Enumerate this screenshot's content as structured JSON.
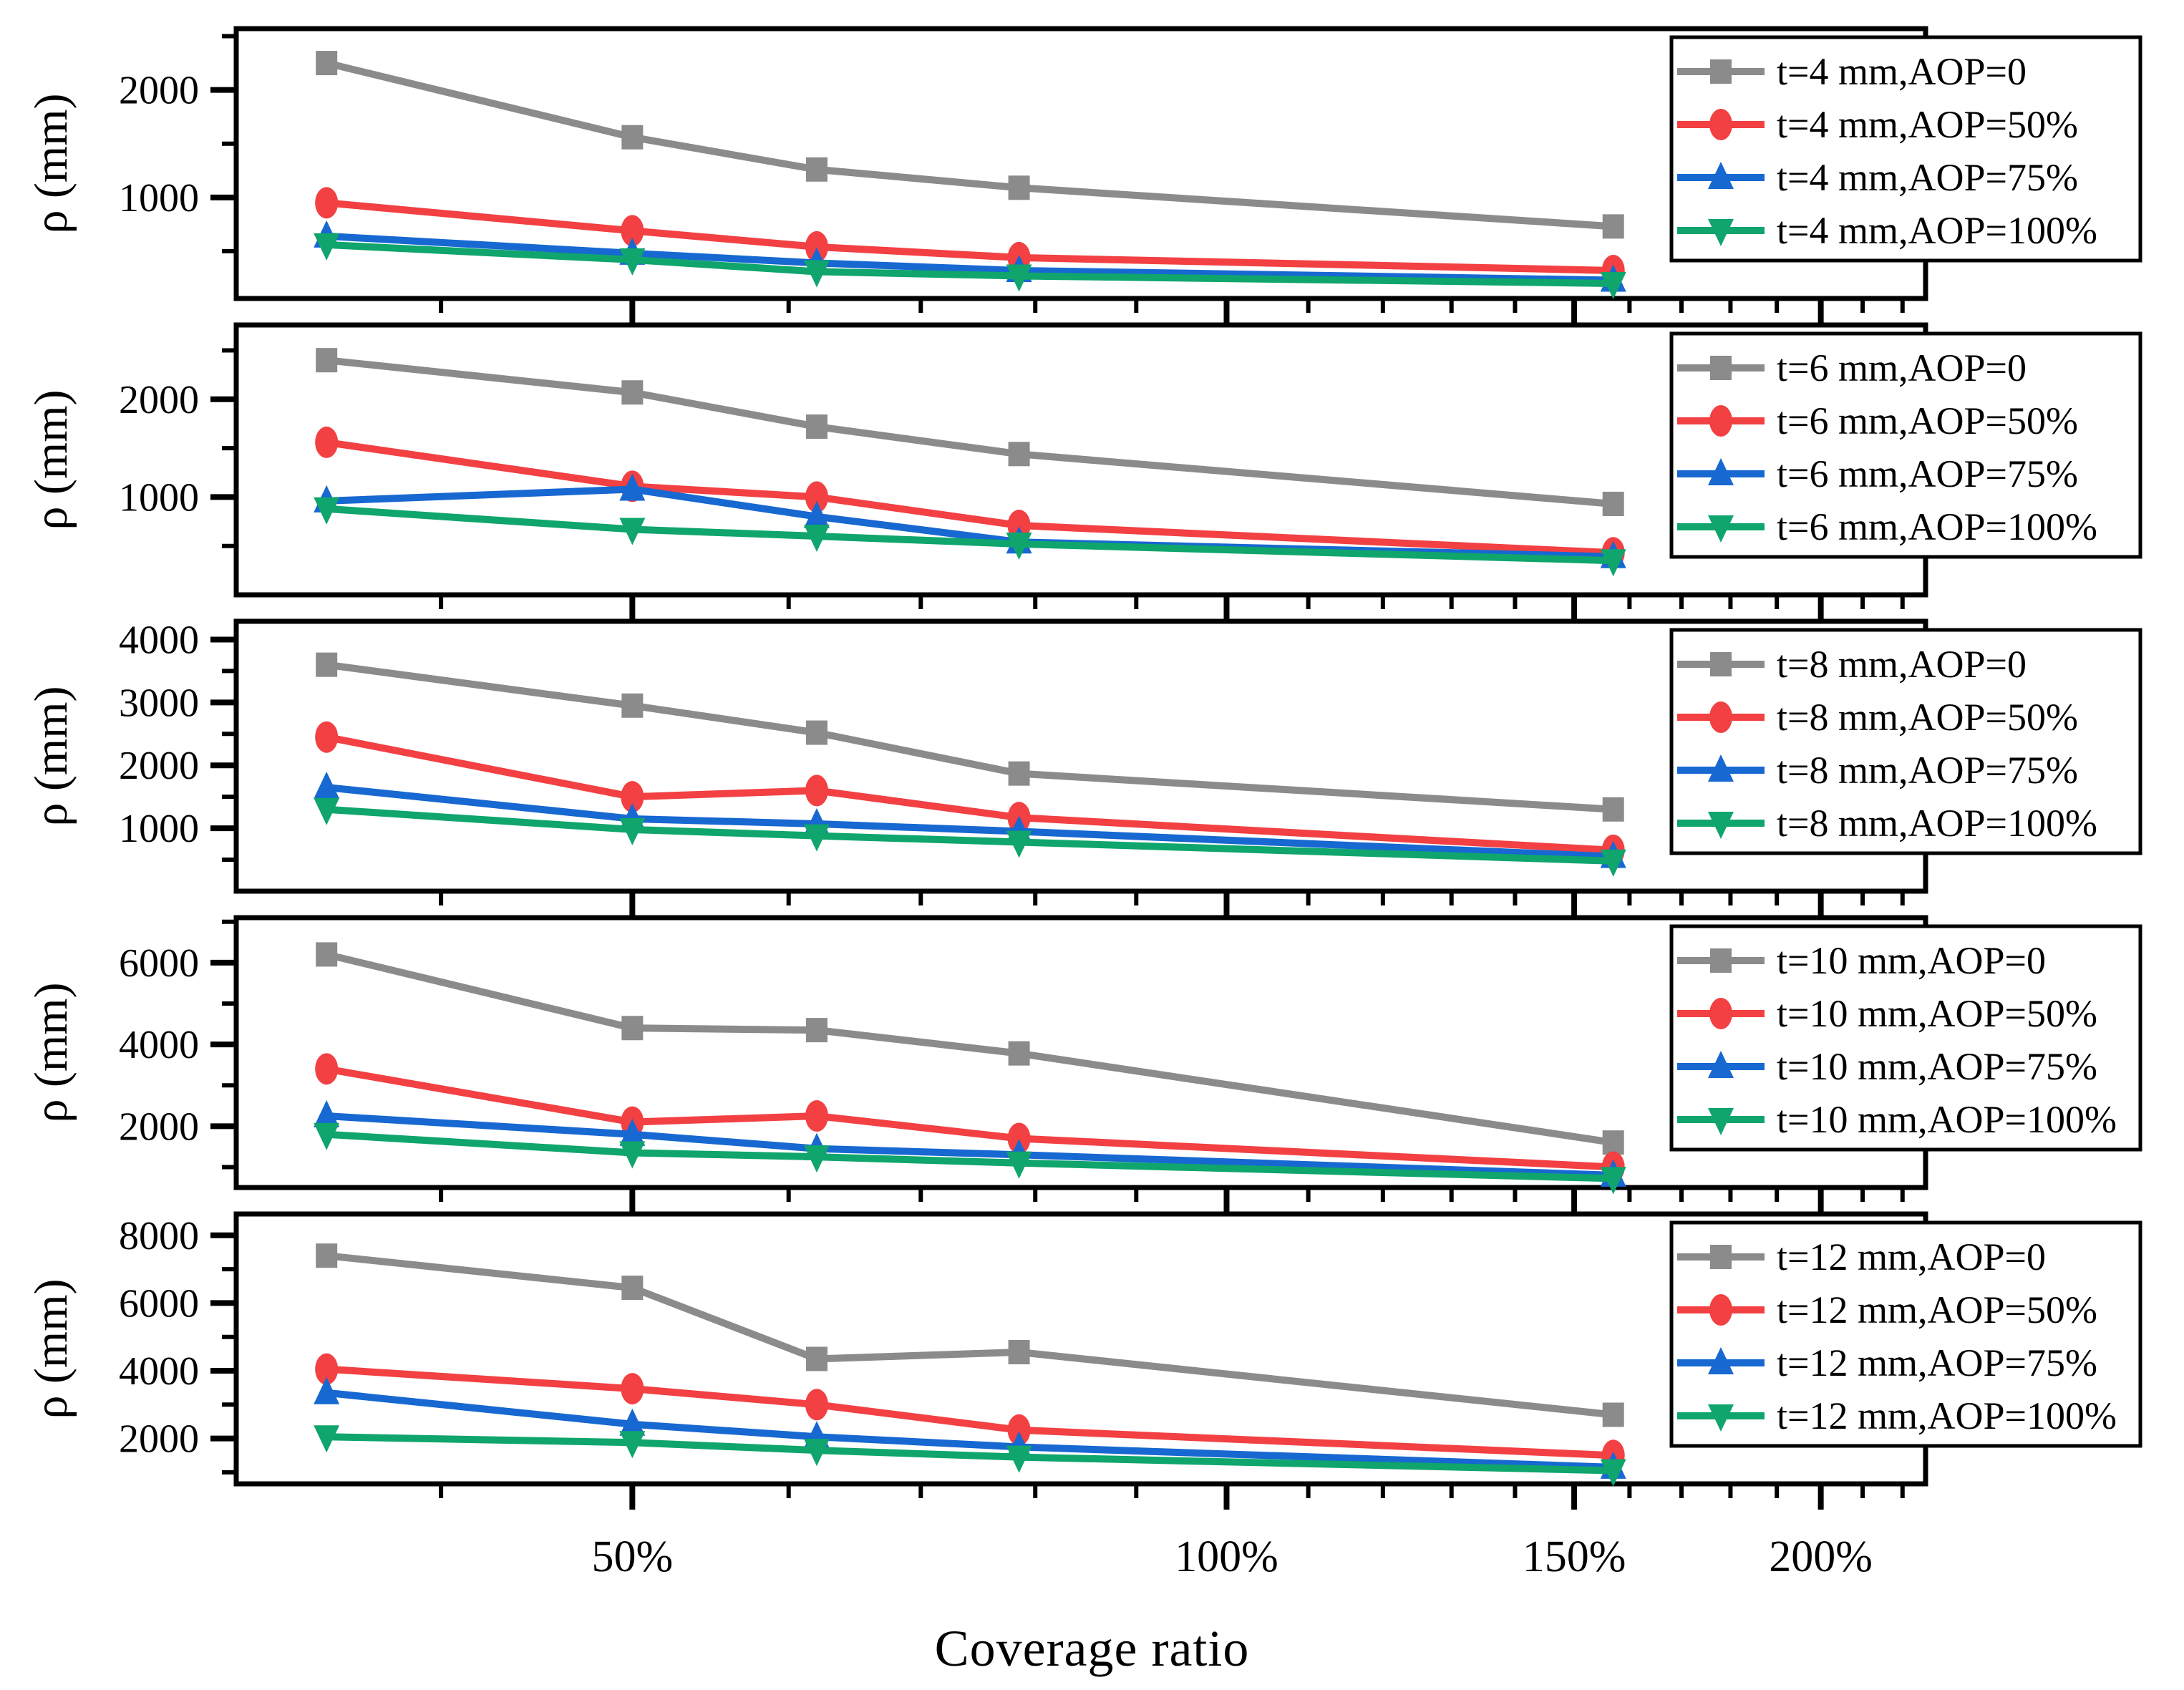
{
  "figure": {
    "xlabel": "Coverage ratio",
    "ylabel": "ρ (mm)",
    "background": "#ffffff",
    "axis_color": "#000000",
    "x_tick_labels": [
      "50%",
      "100%",
      "150%",
      "200%"
    ]
  },
  "chart_data": [
    {
      "type": "line",
      "panel": "t=4 mm",
      "ylabel": "ρ (mm)",
      "x_scale": "log",
      "xlim": [
        0.315,
        2.26
      ],
      "x": [
        0.35,
        0.5,
        0.62,
        0.785,
        1.57
      ],
      "x_major_ticks": [
        0.5,
        1.0,
        1.5,
        2.0
      ],
      "x_major_tick_labels": [
        "50%",
        "100%",
        "150%",
        "200%"
      ],
      "x_minor_ticks": [
        0.4,
        0.6,
        0.7,
        0.8,
        0.9,
        1.1,
        1.2,
        1.3,
        1.4,
        1.6,
        1.7,
        1.8,
        1.9,
        2.1,
        2.2
      ],
      "ylim": [
        60,
        2570
      ],
      "y_major_ticks": [
        1000,
        2000
      ],
      "y_minor_ticks": [
        500,
        1500,
        2500
      ],
      "legend_position": "right",
      "series": [
        {
          "name": "t=4 mm,AOP=0",
          "color": "#8B8B8B",
          "marker": "square",
          "values": [
            2250,
            1560,
            1260,
            1090,
            730
          ]
        },
        {
          "name": "t=4 mm,AOP=50%",
          "color": "#F24043",
          "marker": "circle",
          "values": [
            950,
            690,
            540,
            440,
            320
          ]
        },
        {
          "name": "t=4 mm,AOP=75%",
          "color": "#1768D1",
          "marker": "triangle-up",
          "values": [
            640,
            480,
            390,
            320,
            230
          ]
        },
        {
          "name": "t=4 mm,AOP=100%",
          "color": "#0FA56D",
          "marker": "triangle-down",
          "values": [
            560,
            420,
            310,
            270,
            200
          ]
        }
      ]
    },
    {
      "type": "line",
      "panel": "t=6 mm",
      "ylabel": "ρ (mm)",
      "x_scale": "log",
      "xlim": [
        0.315,
        2.26
      ],
      "x": [
        0.35,
        0.5,
        0.62,
        0.785,
        1.57
      ],
      "x_major_ticks": [
        0.5,
        1.0,
        1.5,
        2.0
      ],
      "x_major_tick_labels": [
        "50%",
        "100%",
        "150%",
        "200%"
      ],
      "x_minor_ticks": [
        0.4,
        0.6,
        0.7,
        0.8,
        0.9,
        1.1,
        1.2,
        1.3,
        1.4,
        1.6,
        1.7,
        1.8,
        1.9,
        2.1,
        2.2
      ],
      "ylim": [
        0,
        2760
      ],
      "y_major_ticks": [
        1000,
        2000
      ],
      "y_minor_ticks": [
        500,
        1500,
        2500
      ],
      "legend_position": "right",
      "series": [
        {
          "name": "t=6 mm,AOP=0",
          "color": "#8B8B8B",
          "marker": "square",
          "values": [
            2400,
            2070,
            1720,
            1440,
            930
          ]
        },
        {
          "name": "t=6 mm,AOP=50%",
          "color": "#F24043",
          "marker": "circle",
          "values": [
            1560,
            1110,
            1000,
            710,
            430
          ]
        },
        {
          "name": "t=6 mm,AOP=75%",
          "color": "#1768D1",
          "marker": "triangle-up",
          "values": [
            960,
            1080,
            800,
            540,
            390
          ]
        },
        {
          "name": "t=6 mm,AOP=100%",
          "color": "#0FA56D",
          "marker": "triangle-down",
          "values": [
            880,
            670,
            600,
            520,
            350
          ]
        }
      ]
    },
    {
      "type": "line",
      "panel": "t=8 mm",
      "ylabel": "ρ (mm)",
      "x_scale": "log",
      "xlim": [
        0.315,
        2.26
      ],
      "x": [
        0.35,
        0.5,
        0.62,
        0.785,
        1.57
      ],
      "x_major_ticks": [
        0.5,
        1.0,
        1.5,
        2.0
      ],
      "x_major_tick_labels": [
        "50%",
        "100%",
        "150%",
        "200%"
      ],
      "x_minor_ticks": [
        0.4,
        0.6,
        0.7,
        0.8,
        0.9,
        1.1,
        1.2,
        1.3,
        1.4,
        1.6,
        1.7,
        1.8,
        1.9,
        2.1,
        2.2
      ],
      "ylim": [
        0,
        4290
      ],
      "y_major_ticks": [
        1000,
        2000,
        3000,
        4000
      ],
      "y_minor_ticks": [
        500,
        1500,
        2500,
        3500
      ],
      "legend_position": "right",
      "series": [
        {
          "name": "t=8 mm,AOP=0",
          "color": "#8B8B8B",
          "marker": "square",
          "values": [
            3600,
            2950,
            2520,
            1870,
            1300
          ]
        },
        {
          "name": "t=8 mm,AOP=50%",
          "color": "#F24043",
          "marker": "circle",
          "values": [
            2450,
            1500,
            1600,
            1170,
            650
          ]
        },
        {
          "name": "t=8 mm,AOP=75%",
          "color": "#1768D1",
          "marker": "triangle-up",
          "values": [
            1650,
            1150,
            1070,
            950,
            550
          ]
        },
        {
          "name": "t=8 mm,AOP=100%",
          "color": "#0FA56D",
          "marker": "triangle-down",
          "values": [
            1300,
            980,
            880,
            780,
            480
          ]
        }
      ]
    },
    {
      "type": "line",
      "panel": "t=10 mm",
      "ylabel": "ρ (mm)",
      "x_scale": "log",
      "xlim": [
        0.315,
        2.26
      ],
      "x": [
        0.35,
        0.5,
        0.62,
        0.785,
        1.57
      ],
      "x_major_ticks": [
        0.5,
        1.0,
        1.5,
        2.0
      ],
      "x_major_tick_labels": [
        "50%",
        "100%",
        "150%",
        "200%"
      ],
      "x_minor_ticks": [
        0.4,
        0.6,
        0.7,
        0.8,
        0.9,
        1.1,
        1.2,
        1.3,
        1.4,
        1.6,
        1.7,
        1.8,
        1.9,
        2.1,
        2.2
      ],
      "ylim": [
        500,
        7100
      ],
      "y_major_ticks": [
        2000,
        4000,
        6000
      ],
      "y_minor_ticks": [
        1000,
        3000,
        5000,
        7000
      ],
      "legend_position": "right",
      "series": [
        {
          "name": "t=10 mm,AOP=0",
          "color": "#8B8B8B",
          "marker": "square",
          "values": [
            6200,
            4400,
            4350,
            3780,
            1600
          ]
        },
        {
          "name": "t=10 mm,AOP=50%",
          "color": "#F24043",
          "marker": "circle",
          "values": [
            3400,
            2100,
            2250,
            1700,
            1000
          ]
        },
        {
          "name": "t=10 mm,AOP=75%",
          "color": "#1768D1",
          "marker": "triangle-up",
          "values": [
            2250,
            1800,
            1450,
            1300,
            800
          ]
        },
        {
          "name": "t=10 mm,AOP=100%",
          "color": "#0FA56D",
          "marker": "triangle-down",
          "values": [
            1800,
            1350,
            1250,
            1100,
            720
          ]
        }
      ]
    },
    {
      "type": "line",
      "panel": "t=12 mm",
      "ylabel": "ρ (mm)",
      "x_scale": "log",
      "xlim": [
        0.315,
        2.26
      ],
      "x": [
        0.35,
        0.5,
        0.62,
        0.785,
        1.57
      ],
      "x_major_ticks": [
        0.5,
        1.0,
        1.5,
        2.0
      ],
      "x_major_tick_labels": [
        "50%",
        "100%",
        "150%",
        "200%"
      ],
      "x_minor_ticks": [
        0.4,
        0.6,
        0.7,
        0.8,
        0.9,
        1.1,
        1.2,
        1.3,
        1.4,
        1.6,
        1.7,
        1.8,
        1.9,
        2.1,
        2.2
      ],
      "ylim": [
        660,
        8630
      ],
      "y_major_ticks": [
        2000,
        4000,
        6000,
        8000
      ],
      "y_minor_ticks": [
        1000,
        3000,
        5000,
        7000
      ],
      "legend_position": "right",
      "series": [
        {
          "name": "t=12 mm,AOP=0",
          "color": "#8B8B8B",
          "marker": "square",
          "values": [
            7400,
            6450,
            4350,
            4550,
            2700
          ]
        },
        {
          "name": "t=12 mm,AOP=50%",
          "color": "#F24043",
          "marker": "circle",
          "values": [
            4050,
            3470,
            3000,
            2250,
            1500
          ]
        },
        {
          "name": "t=12 mm,AOP=75%",
          "color": "#1768D1",
          "marker": "triangle-up",
          "values": [
            3350,
            2420,
            2050,
            1750,
            1150
          ]
        },
        {
          "name": "t=12 mm,AOP=100%",
          "color": "#0FA56D",
          "marker": "triangle-down",
          "values": [
            2050,
            1880,
            1650,
            1450,
            1050
          ]
        }
      ]
    }
  ]
}
